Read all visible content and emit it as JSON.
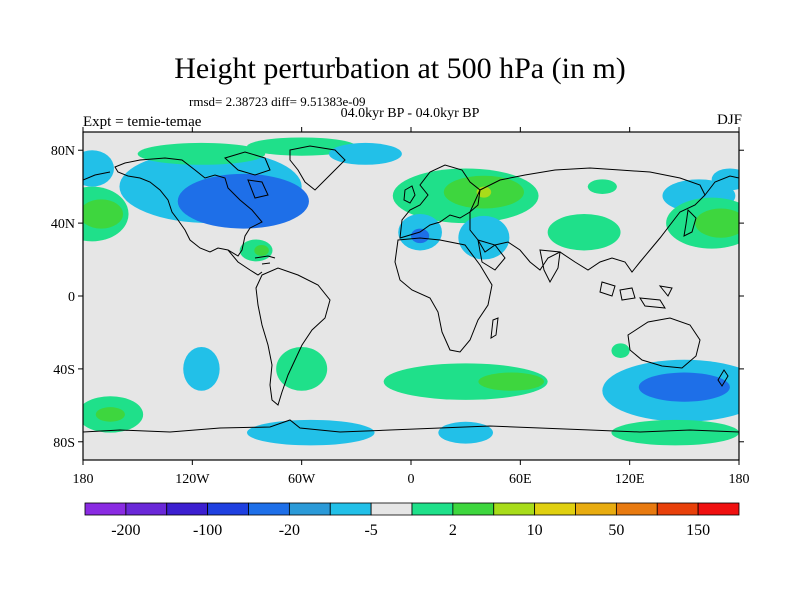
{
  "title": "Height perturbation at 500 hPa (in m)",
  "stats_line": "rmsd= 2.38723 diff= 9.51383e-09",
  "period_line": "04.0kyr BP - 04.0kyr BP",
  "left_label": "Expt = temie-temae",
  "right_label": "DJF",
  "lat_ticks": [
    {
      "lat": 80,
      "label": "80N"
    },
    {
      "lat": 40,
      "label": "40N"
    },
    {
      "lat": 0,
      "label": "0"
    },
    {
      "lat": -40,
      "label": "40S"
    },
    {
      "lat": -80,
      "label": "80S"
    }
  ],
  "lon_ticks": [
    {
      "lon": -180,
      "label": "180"
    },
    {
      "lon": -120,
      "label": "120W"
    },
    {
      "lon": -60,
      "label": "60W"
    },
    {
      "lon": 0,
      "label": "0"
    },
    {
      "lon": 60,
      "label": "60E"
    },
    {
      "lon": 120,
      "label": "120E"
    },
    {
      "lon": 180,
      "label": "180"
    }
  ],
  "colorbar": {
    "colors": [
      "#8a2be2",
      "#6a28d8",
      "#3c1fd0",
      "#1f40e0",
      "#1e6fe8",
      "#2b9ad8",
      "#22c0e8",
      "#e6e6e6",
      "#1fe08a",
      "#3ed63e",
      "#a8dc1a",
      "#e0d010",
      "#e8ac10",
      "#e87a10",
      "#e8400a",
      "#f01010"
    ],
    "labels": [
      {
        "after_box": 1,
        "text": "-200"
      },
      {
        "after_box": 3,
        "text": "-100"
      },
      {
        "after_box": 5,
        "text": "-20"
      },
      {
        "after_box": 7,
        "text": "-5"
      },
      {
        "after_box": 9,
        "text": "2"
      },
      {
        "after_box": 11,
        "text": "10"
      },
      {
        "after_box": 13,
        "text": "50"
      },
      {
        "after_box": 15,
        "text": "150"
      }
    ]
  },
  "field_colors": {
    "background": "#e6e6e6",
    "neg_weak": "#22c0e8",
    "neg_mid": "#1e6fe8",
    "pos_weak": "#1fe08a",
    "pos_mid": "#3ed63e",
    "pos_strong": "#a8dc1a"
  },
  "anomalies": [
    {
      "lon": -175,
      "lat": 45,
      "rx": 20,
      "ry": 15,
      "color": "pos_weak"
    },
    {
      "lon": -170,
      "lat": 45,
      "rx": 12,
      "ry": 8,
      "color": "pos_mid"
    },
    {
      "lon": -175,
      "lat": 70,
      "rx": 12,
      "ry": 10,
      "color": "neg_weak"
    },
    {
      "lon": -110,
      "lat": 60,
      "rx": 50,
      "ry": 20,
      "color": "neg_weak"
    },
    {
      "lon": -92,
      "lat": 52,
      "rx": 36,
      "ry": 15,
      "color": "neg_mid"
    },
    {
      "lon": -115,
      "lat": 78,
      "rx": 35,
      "ry": 6,
      "color": "pos_weak"
    },
    {
      "lon": -60,
      "lat": 82,
      "rx": 30,
      "ry": 5,
      "color": "pos_weak"
    },
    {
      "lon": -25,
      "lat": 78,
      "rx": 20,
      "ry": 6,
      "color": "neg_weak"
    },
    {
      "lon": -85,
      "lat": 25,
      "rx": 9,
      "ry": 6,
      "color": "pos_weak"
    },
    {
      "lon": -82,
      "lat": 25,
      "rx": 4,
      "ry": 3,
      "color": "pos_mid"
    },
    {
      "lon": 30,
      "lat": 55,
      "rx": 40,
      "ry": 15,
      "color": "pos_weak"
    },
    {
      "lon": 40,
      "lat": 57,
      "rx": 22,
      "ry": 9,
      "color": "pos_mid"
    },
    {
      "lon": 40,
      "lat": 57,
      "rx": 4,
      "ry": 3,
      "color": "pos_strong"
    },
    {
      "lon": 105,
      "lat": 60,
      "rx": 8,
      "ry": 4,
      "color": "pos_weak"
    },
    {
      "lon": 5,
      "lat": 35,
      "rx": 12,
      "ry": 10,
      "color": "neg_weak"
    },
    {
      "lon": 5,
      "lat": 33,
      "rx": 5,
      "ry": 4,
      "color": "neg_mid"
    },
    {
      "lon": 40,
      "lat": 32,
      "rx": 14,
      "ry": 12,
      "color": "neg_weak"
    },
    {
      "lon": 95,
      "lat": 35,
      "rx": 20,
      "ry": 10,
      "color": "pos_weak"
    },
    {
      "lon": 158,
      "lat": 55,
      "rx": 20,
      "ry": 9,
      "color": "neg_weak"
    },
    {
      "lon": 165,
      "lat": 40,
      "rx": 25,
      "ry": 14,
      "color": "pos_weak"
    },
    {
      "lon": 170,
      "lat": 40,
      "rx": 14,
      "ry": 8,
      "color": "pos_mid"
    },
    {
      "lon": 175,
      "lat": 64,
      "rx": 10,
      "ry": 6,
      "color": "neg_weak"
    },
    {
      "lon": -115,
      "lat": -40,
      "rx": 10,
      "ry": 12,
      "color": "neg_weak"
    },
    {
      "lon": -60,
      "lat": -40,
      "rx": 14,
      "ry": 12,
      "color": "pos_weak"
    },
    {
      "lon": -55,
      "lat": -75,
      "rx": 35,
      "ry": 7,
      "color": "neg_weak"
    },
    {
      "lon": -165,
      "lat": -65,
      "rx": 18,
      "ry": 10,
      "color": "pos_weak"
    },
    {
      "lon": -165,
      "lat": -65,
      "rx": 8,
      "ry": 4,
      "color": "pos_mid"
    },
    {
      "lon": 30,
      "lat": -47,
      "rx": 45,
      "ry": 10,
      "color": "pos_weak"
    },
    {
      "lon": 55,
      "lat": -47,
      "rx": 18,
      "ry": 5,
      "color": "pos_mid"
    },
    {
      "lon": 30,
      "lat": -75,
      "rx": 15,
      "ry": 6,
      "color": "neg_weak"
    },
    {
      "lon": 150,
      "lat": -52,
      "rx": 45,
      "ry": 17,
      "color": "neg_weak"
    },
    {
      "lon": 150,
      "lat": -50,
      "rx": 25,
      "ry": 8,
      "color": "neg_mid"
    },
    {
      "lon": 145,
      "lat": -75,
      "rx": 35,
      "ry": 7,
      "color": "pos_weak"
    },
    {
      "lon": 115,
      "lat": -30,
      "rx": 5,
      "ry": 4,
      "color": "pos_weak"
    }
  ]
}
